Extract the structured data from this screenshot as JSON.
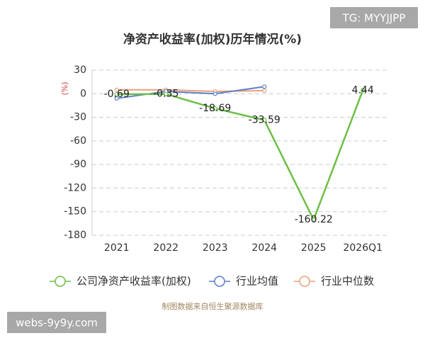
{
  "chart_data": {
    "type": "line",
    "title": "净资产收益率(加权)历年情况(%)",
    "y_label": "(%)",
    "categories": [
      "2021",
      "2022",
      "2023",
      "2024",
      "2025",
      "2026Q1"
    ],
    "series": [
      {
        "name": "公司净资产收益率(加权)",
        "color": "#6cbf45",
        "values": [
          -0.69,
          -0.35,
          -18.69,
          -33.59,
          -160.22,
          4.44
        ]
      },
      {
        "name": "行业均值",
        "color": "#5b7fc7",
        "values": [
          -6,
          3,
          0,
          9,
          null,
          null
        ]
      },
      {
        "name": "行业中位数",
        "color": "#e8a07a",
        "values": [
          5,
          5,
          3,
          4,
          null,
          null
        ]
      }
    ],
    "ylim": [
      -180,
      30
    ],
    "yticks": [
      30,
      0,
      -30,
      -60,
      -90,
      -120,
      -150,
      -180
    ],
    "grid": true,
    "source": "制图数据来自恒生聚源数据库"
  },
  "watermarks": [
    "TG: MYYJJPP",
    "webs-9y9y.com"
  ]
}
